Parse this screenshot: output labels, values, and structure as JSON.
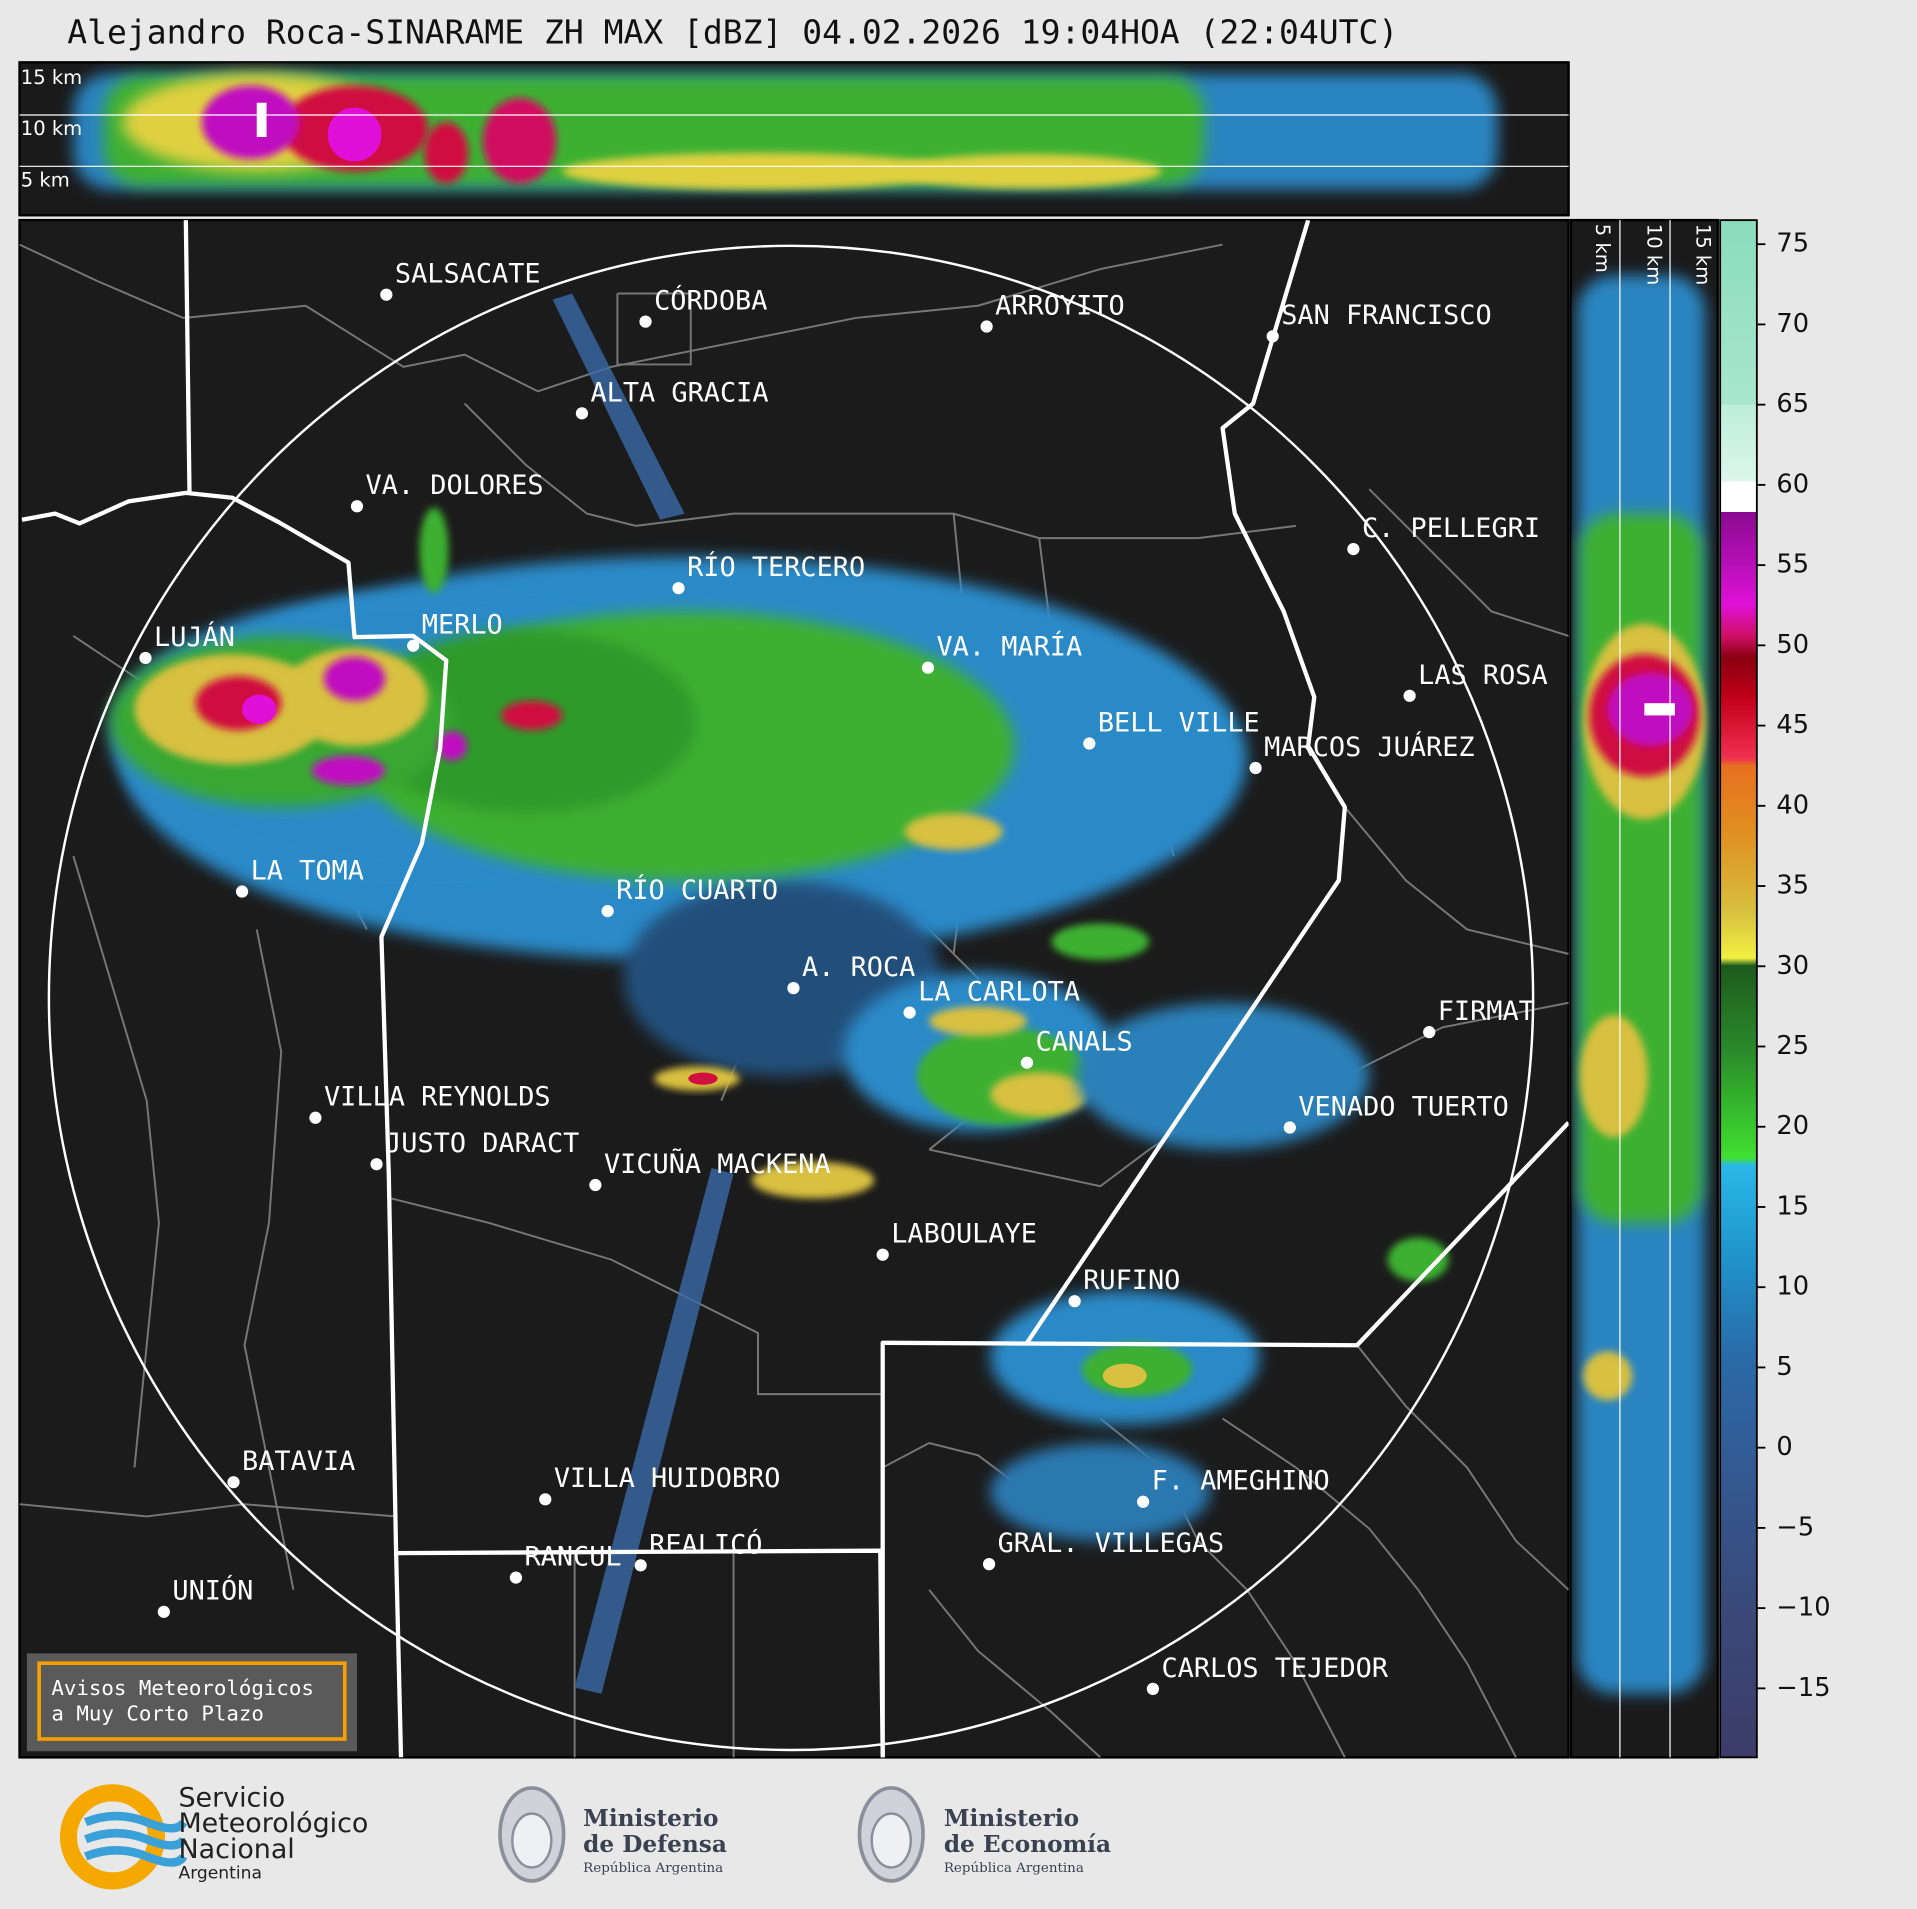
{
  "header": {
    "title": "Alejandro Roca-SINARAME ZH MAX [dBZ] 04.02.2026 19:04HOA (22:04UTC)"
  },
  "cross_section": {
    "top_labels": [
      "15 km",
      "10 km",
      "5 km"
    ],
    "side_labels": [
      "5 km",
      "10 km",
      "15 km"
    ]
  },
  "colorbar": {
    "ylim": [
      -19.3,
      76.5
    ],
    "yticks": [
      {
        "value": -15,
        "label": "−15"
      },
      {
        "value": -10,
        "label": "−10"
      },
      {
        "value": -5,
        "label": "−5"
      },
      0,
      5,
      10,
      15,
      20,
      25,
      30,
      35,
      40,
      45,
      50,
      55,
      60,
      65,
      70,
      75
    ]
  },
  "cities": [
    {
      "name": "SALSACATE"
    },
    {
      "name": "CÓRDOBA"
    },
    {
      "name": "ARROYITO"
    },
    {
      "name": "SAN FRANCISCO"
    },
    {
      "name": "ALTA GRACIA"
    },
    {
      "name": "VA. DOLORES"
    },
    {
      "name": "C. PELLEGRI"
    },
    {
      "name": "RÍO TERCERO"
    },
    {
      "name": "LUJÁN"
    },
    {
      "name": "MERLO"
    },
    {
      "name": "VA. MARÍA"
    },
    {
      "name": "LAS ROSA"
    },
    {
      "name": "BELL VILLE"
    },
    {
      "name": "MARCOS JUÁREZ"
    },
    {
      "name": "LA TOMA"
    },
    {
      "name": "RÍO CUARTO"
    },
    {
      "name": "A. ROCA"
    },
    {
      "name": "LA CARLOTA"
    },
    {
      "name": "FIRMAT"
    },
    {
      "name": "CANALS"
    },
    {
      "name": "VILLA REYNOLDS"
    },
    {
      "name": "VENADO TUERTO"
    },
    {
      "name": "JUSTO DARACT"
    },
    {
      "name": "VICUÑA MACKENA"
    },
    {
      "name": "LABOULAYE"
    },
    {
      "name": "RUFINO"
    },
    {
      "name": "BATAVIA"
    },
    {
      "name": "F. AMEGHINO"
    },
    {
      "name": "VILLA HUIDOBRO"
    },
    {
      "name": "REALICÓ"
    },
    {
      "name": "RANCUL"
    },
    {
      "name": "GRAL. VILLEGAS"
    },
    {
      "name": "UNIÓN"
    },
    {
      "name": "CARLOS TEJEDOR"
    }
  ],
  "warning_box": {
    "lines": [
      "Avisos Meteorológicos",
      "a Muy Corto Plazo"
    ]
  },
  "logos": {
    "smn": [
      "Servicio",
      "Meteorológico",
      "Nacional",
      "Argentina"
    ],
    "defensa": [
      "Ministerio",
      "de Defensa",
      "República Argentina"
    ],
    "economia": [
      "Ministerio",
      "de Economía",
      "República Argentina"
    ]
  }
}
